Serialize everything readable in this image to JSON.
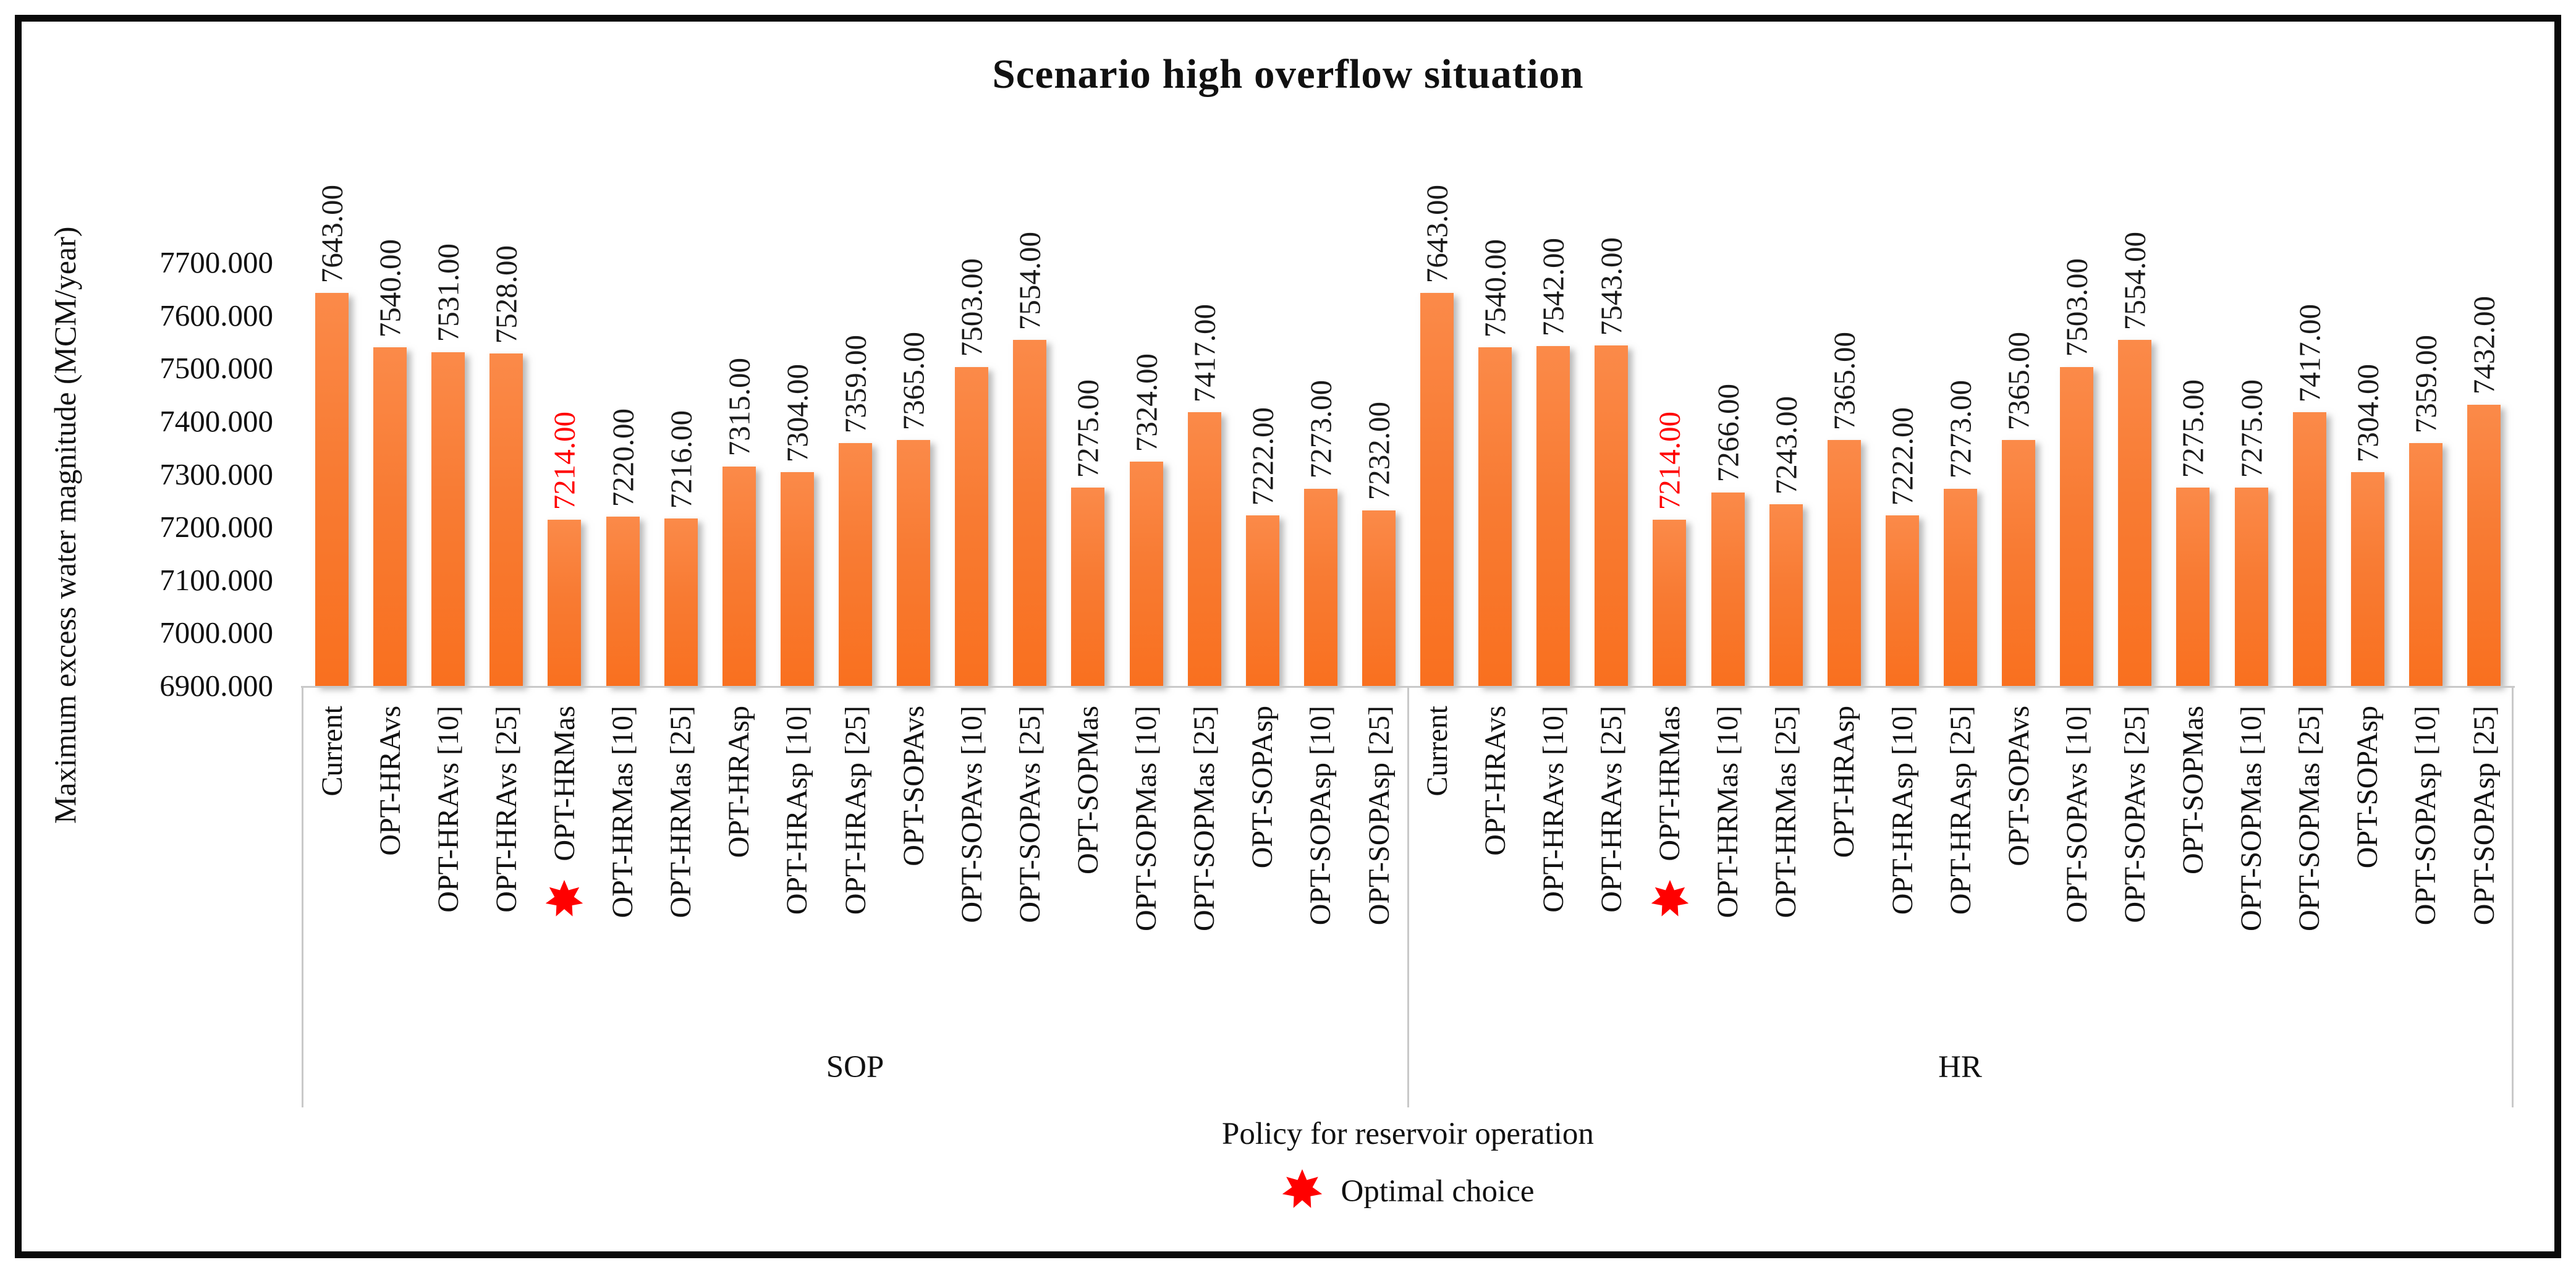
{
  "figure": {
    "title": "Scenario high overflow situation",
    "x_axis_title": "Policy for reservoir operation",
    "y_axis_title": "Maximum excess water magnitude (MCM/year)",
    "legend": {
      "label": "Optimal choice",
      "marker": "red-starburst",
      "marker_color": "#FF0000"
    }
  },
  "chart_data": {
    "type": "bar",
    "title": "Scenario high overflow situation",
    "xlabel": "Policy for reservoir operation",
    "ylabel": "Maximum excess water magnitude (MCM/year)",
    "ylim": [
      6900,
      7700
    ],
    "ytick_step": 100,
    "yticks": [
      "7700.000",
      "7600.000",
      "7500.000",
      "7400.000",
      "7300.000",
      "7200.000",
      "7100.000",
      "7000.000",
      "6900.000"
    ],
    "grid": false,
    "legend_position": "bottom",
    "bar_color": {
      "top": "#FB8A49",
      "bottom": "#F9701F"
    },
    "value_label_decimals": 2,
    "value_label_color": "#1a1a1a",
    "optimal_value_label_color": "#FF0000",
    "categories": [
      "Current",
      "OPT-HRAvs",
      "OPT-HRAvs [10]",
      "OPT-HRAvs [25]",
      "OPT-HRMas",
      "OPT-HRMas [10]",
      "OPT-HRMas [25]",
      "OPT-HRAsp",
      "OPT-HRAsp [10]",
      "OPT-HRAsp [25]",
      "OPT-SOPAvs",
      "OPT-SOPAvs [10]",
      "OPT-SOPAvs [25]",
      "OPT-SOPMas",
      "OPT-SOPMas [10]",
      "OPT-SOPMas [25]",
      "OPT-SOPAsp",
      "OPT-SOPAsp [10]",
      "OPT-SOPAsp [25]"
    ],
    "series": [
      {
        "name": "SOP",
        "values": [
          7643.0,
          7540.0,
          7531.0,
          7528.0,
          7214.0,
          7220.0,
          7216.0,
          7315.0,
          7304.0,
          7359.0,
          7365.0,
          7503.0,
          7554.0,
          7275.0,
          7324.0,
          7417.0,
          7222.0,
          7273.0,
          7232.0
        ]
      },
      {
        "name": "HR",
        "values": [
          7643.0,
          7540.0,
          7542.0,
          7543.0,
          7214.0,
          7266.0,
          7243.0,
          7365.0,
          7222.0,
          7273.0,
          7365.0,
          7503.0,
          7554.0,
          7275.0,
          7275.0,
          7417.0,
          7304.0,
          7359.0,
          7432.0
        ]
      }
    ],
    "optimal": {
      "category": "OPT-HRMas",
      "value": 7214.0,
      "series": [
        "SOP",
        "HR"
      ],
      "category_index": 4,
      "marker": "red-starburst",
      "marker_color": "#FF0000"
    }
  }
}
